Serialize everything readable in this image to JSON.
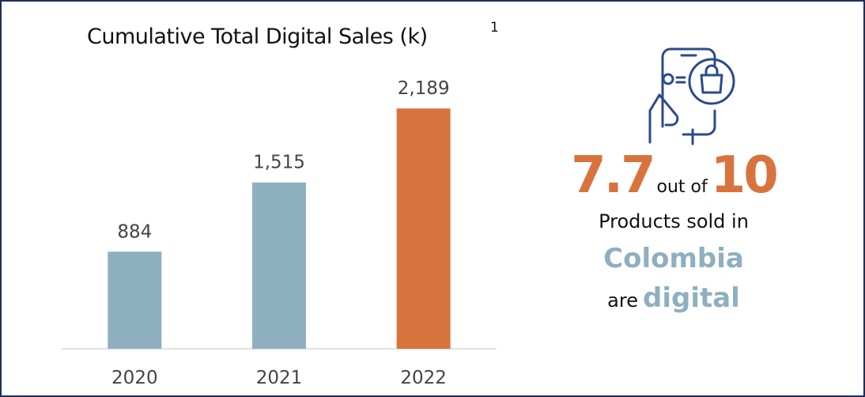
{
  "chart_data": {
    "type": "bar",
    "title": "Cumulative Total Digital Sales (k)",
    "footnote_marker": "1",
    "categories": [
      "2020",
      "2021",
      "2022"
    ],
    "values": [
      884,
      1515,
      2189
    ],
    "value_labels": [
      "884",
      "1,515",
      "2,189"
    ],
    "colors": [
      "#8eafbf",
      "#8eafbf",
      "#d9733d"
    ],
    "ylim": [
      0,
      2500
    ]
  },
  "callout": {
    "share": "7.7",
    "out_of": "out of",
    "total": "10",
    "line1": "Products sold in",
    "country": "Colombia",
    "are": "are",
    "digital": "digital"
  }
}
